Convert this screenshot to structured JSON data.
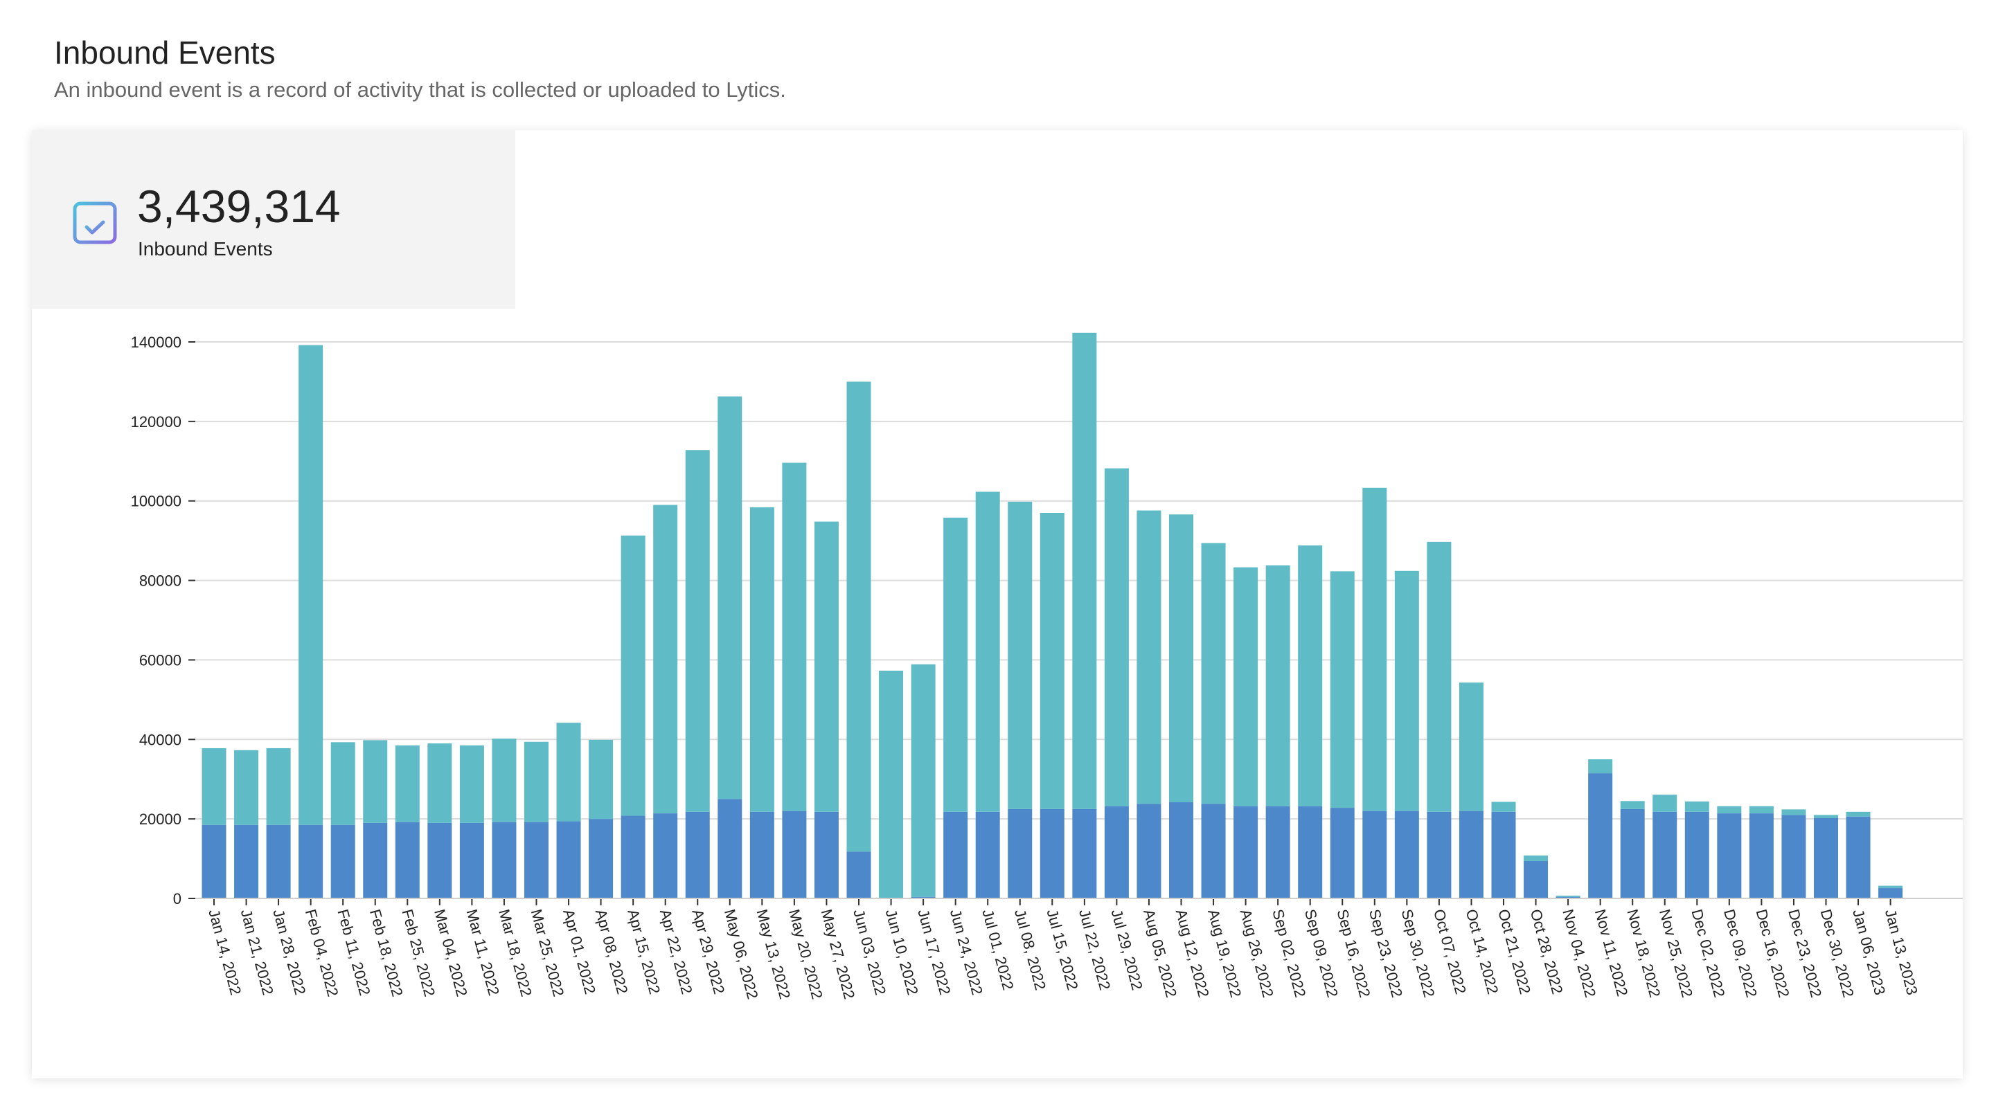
{
  "header": {
    "title": "Inbound Events",
    "subtitle": "An inbound event is a record of activity that is collected or uploaded to Lytics."
  },
  "stat": {
    "value": "3,439,314",
    "label": "Inbound Events",
    "icon": "calendar-check-icon"
  },
  "colors": {
    "series_base": "#4d88cb",
    "series_top": "#5fbbc6",
    "gridline": "#dcdcdc",
    "icon_gradient_start": "#4cc1de",
    "icon_gradient_end": "#8b6be0"
  },
  "chart_data": {
    "type": "bar",
    "stacked": true,
    "ylim": [
      0,
      140000
    ],
    "yticks": [
      "0",
      "20000",
      "40000",
      "60000",
      "80000",
      "100000",
      "120000",
      "140000"
    ],
    "grid": true,
    "categories": [
      "Jan 14, 2022",
      "Jan 21, 2022",
      "Jan 28, 2022",
      "Feb 04, 2022",
      "Feb 11, 2022",
      "Feb 18, 2022",
      "Feb 25, 2022",
      "Mar 04, 2022",
      "Mar 11, 2022",
      "Mar 18, 2022",
      "Mar 25, 2022",
      "Apr 01, 2022",
      "Apr 08, 2022",
      "Apr 15, 2022",
      "Apr 22, 2022",
      "Apr 29, 2022",
      "May 06, 2022",
      "May 13, 2022",
      "May 20, 2022",
      "May 27, 2022",
      "Jun 03, 2022",
      "Jun 10, 2022",
      "Jun 17, 2022",
      "Jun 24, 2022",
      "Jul 01, 2022",
      "Jul 08, 2022",
      "Jul 15, 2022",
      "Jul 22, 2022",
      "Jul 29, 2022",
      "Aug 05, 2022",
      "Aug 12, 2022",
      "Aug 19, 2022",
      "Aug 26, 2022",
      "Sep 02, 2022",
      "Sep 09, 2022",
      "Sep 16, 2022",
      "Sep 23, 2022",
      "Sep 30, 2022",
      "Oct 07, 2022",
      "Oct 14, 2022",
      "Oct 21, 2022",
      "Oct 28, 2022",
      "Nov 04, 2022",
      "Nov 11, 2022",
      "Nov 18, 2022",
      "Nov 25, 2022",
      "Dec 02, 2022",
      "Dec 09, 2022",
      "Dec 16, 2022",
      "Dec 23, 2022",
      "Dec 30, 2022",
      "Jan 06, 2023",
      "Jan 13, 2023"
    ],
    "series": [
      {
        "values": [
          18500,
          18500,
          18500,
          18500,
          18500,
          19000,
          19200,
          19000,
          19000,
          19200,
          19200,
          19400,
          20000,
          20800,
          21400,
          21800,
          25000,
          21800,
          22000,
          21800,
          11800,
          0,
          400,
          21800,
          21800,
          22500,
          22500,
          22500,
          23200,
          23800,
          24200,
          23800,
          23200,
          23200,
          23200,
          22800,
          22000,
          22000,
          21800,
          22000,
          21800,
          9400,
          400,
          31500,
          22500,
          21800,
          21800,
          21400,
          21400,
          21000,
          20200,
          20600,
          2600
        ]
      },
      {
        "values": [
          19300,
          18800,
          19300,
          120700,
          20800,
          20800,
          19300,
          20000,
          19500,
          21000,
          20200,
          24800,
          19900,
          70500,
          77600,
          91000,
          101300,
          76600,
          87600,
          73000,
          118200,
          57300,
          58500,
          74000,
          80500,
          77300,
          74500,
          119800,
          85000,
          73800,
          72400,
          65600,
          60100,
          60600,
          65600,
          59500,
          81300,
          60400,
          67900,
          32300,
          2500,
          1400,
          300,
          3500,
          2000,
          4300,
          2600,
          1800,
          1800,
          1400,
          800,
          1200,
          600
        ]
      }
    ]
  }
}
